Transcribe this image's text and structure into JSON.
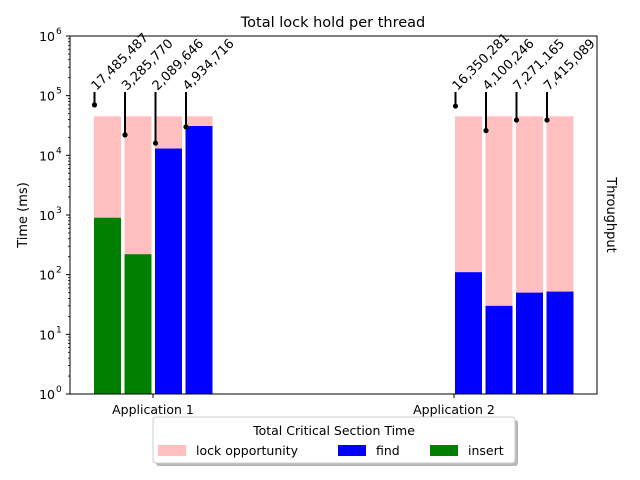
{
  "chart_data": {
    "type": "bar",
    "title": "Total lock hold per thread",
    "ylabel": "Time (ms)",
    "ylabel_right": "Throughput",
    "yscale": "log",
    "ylim": [
      1,
      1000000
    ],
    "yticks": [
      {
        "value": 1,
        "base": "10",
        "exp": "0"
      },
      {
        "value": 10,
        "base": "10",
        "exp": "1"
      },
      {
        "value": 100,
        "base": "10",
        "exp": "2"
      },
      {
        "value": 1000,
        "base": "10",
        "exp": "3"
      },
      {
        "value": 10000,
        "base": "10",
        "exp": "4"
      },
      {
        "value": 100000,
        "base": "10",
        "exp": "5"
      },
      {
        "value": 1000000,
        "base": "10",
        "exp": "6"
      }
    ],
    "groups": [
      {
        "label": "Application 1",
        "bars": [
          {
            "lock_opportunity": 45000,
            "find": 0,
            "insert": 900,
            "throughput_label": "17,485,487",
            "throughput_marker": 70000
          },
          {
            "lock_opportunity": 45000,
            "find": 0,
            "insert": 220,
            "throughput_label": "3,285,770",
            "throughput_marker": 22000
          },
          {
            "lock_opportunity": 45000,
            "find": 13000,
            "insert": 0,
            "throughput_label": "2,089,646",
            "throughput_marker": 16000
          },
          {
            "lock_opportunity": 45000,
            "find": 31000,
            "insert": 0,
            "throughput_label": "4,934,716",
            "throughput_marker": 30000
          }
        ]
      },
      {
        "label": "Application 2",
        "bars": [
          {
            "lock_opportunity": 45000,
            "find": 110,
            "insert": 0,
            "throughput_label": "16,350,281",
            "throughput_marker": 67000
          },
          {
            "lock_opportunity": 45000,
            "find": 30,
            "insert": 0,
            "throughput_label": "4,100,246",
            "throughput_marker": 26000
          },
          {
            "lock_opportunity": 45000,
            "find": 50,
            "insert": 0,
            "throughput_label": "7,271,165",
            "throughput_marker": 39000
          },
          {
            "lock_opportunity": 45000,
            "find": 52,
            "insert": 0,
            "throughput_label": "7,415,089",
            "throughput_marker": 39000
          }
        ]
      }
    ],
    "legend": {
      "title": "Total Critical Section Time",
      "placement": "bottom-center",
      "entries": [
        {
          "name": "lock opportunity",
          "color": "#ffbfbf"
        },
        {
          "name": "find",
          "color": "#0000ff"
        },
        {
          "name": "insert",
          "color": "#008000"
        }
      ]
    },
    "colors": {
      "lock_opportunity": "#ffbfbf",
      "find": "#0000ff",
      "insert": "#008000"
    }
  }
}
